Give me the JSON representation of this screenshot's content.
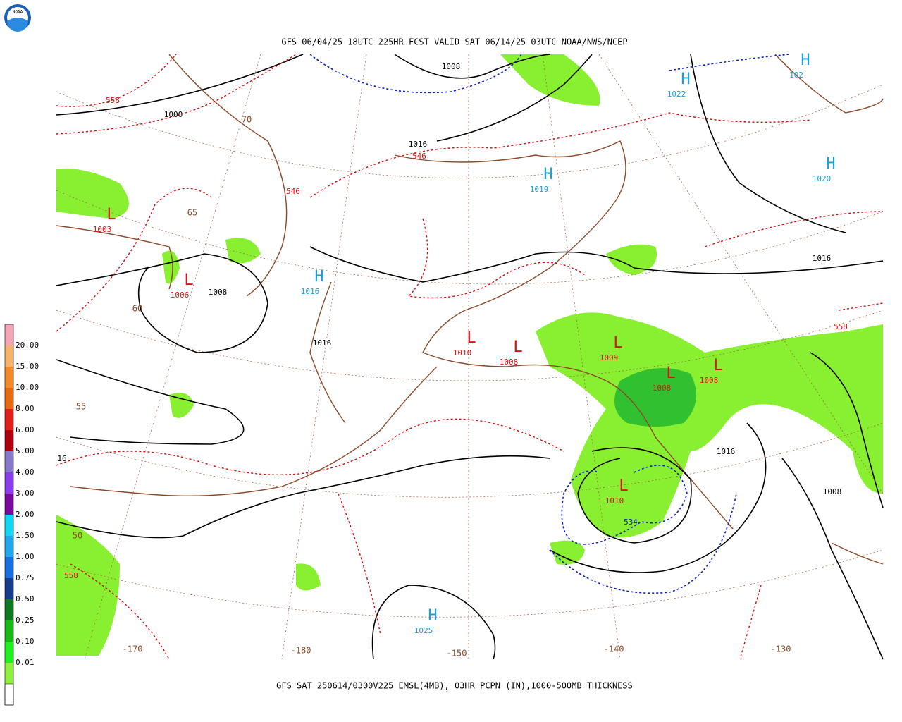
{
  "header": {
    "title": "GFS 06/04/25 18UTC 225HR FCST VALID SAT 06/14/25 03UTC NOAA/NWS/NCEP",
    "logo": "NOAA"
  },
  "footer": {
    "caption": "GFS SAT 250614/0300V225 EMSL(4MB), 03HR PCPN (IN),1000-500MB THICKNESS"
  },
  "legend": {
    "top_color": "#f4a6b6",
    "bottom_color": "#ffffff",
    "items": [
      {
        "label": "20.00",
        "color": "#f2b46e"
      },
      {
        "label": "15.00",
        "color": "#f08c28"
      },
      {
        "label": "10.00",
        "color": "#e86a10"
      },
      {
        "label": "8.00",
        "color": "#e02018"
      },
      {
        "label": "6.00",
        "color": "#b00010"
      },
      {
        "label": "5.00",
        "color": "#8878c8"
      },
      {
        "label": "4.00",
        "color": "#8a3cf0"
      },
      {
        "label": "3.00",
        "color": "#7a0a9a"
      },
      {
        "label": "2.00",
        "color": "#10d8f0"
      },
      {
        "label": "1.50",
        "color": "#20a8e8"
      },
      {
        "label": "1.00",
        "color": "#1870e0"
      },
      {
        "label": "0.75",
        "color": "#183c88"
      },
      {
        "label": "0.50",
        "color": "#107820"
      },
      {
        "label": "0.25",
        "color": "#18b818"
      },
      {
        "label": "0.10",
        "color": "#20f020"
      },
      {
        "label": "0.01",
        "color": "#90f040"
      }
    ]
  },
  "centers": [
    {
      "symbol": "L",
      "label": "1003"
    },
    {
      "symbol": "L",
      "label": "1006"
    },
    {
      "symbol": "H",
      "label": "1016"
    },
    {
      "symbol": "H",
      "label": "1019"
    },
    {
      "symbol": "H",
      "label": "1022"
    },
    {
      "symbol": "H",
      "label": "102"
    },
    {
      "symbol": "H",
      "label": "1020"
    },
    {
      "symbol": "L",
      "label": "1010"
    },
    {
      "symbol": "L",
      "label": "1008"
    },
    {
      "symbol": "L",
      "label": "1009"
    },
    {
      "symbol": "L",
      "label": "1008"
    },
    {
      "symbol": "L",
      "label": "1008"
    },
    {
      "symbol": "L",
      "label": "1010"
    },
    {
      "symbol": "H",
      "label": "1025"
    }
  ],
  "contour_labels": [
    {
      "label": "1008",
      "color": "#000000"
    },
    {
      "label": "1000",
      "color": "#000000"
    },
    {
      "label": "1016",
      "color": "#000000"
    },
    {
      "label": "1008",
      "color": "#000000"
    },
    {
      "label": "1016",
      "color": "#000000"
    },
    {
      "label": "1016",
      "color": "#000000"
    },
    {
      "label": "1016",
      "color": "#000000"
    },
    {
      "label": "1008",
      "color": "#000000"
    },
    {
      "label": "16",
      "color": "#000000"
    },
    {
      "label": "558",
      "color": "#e01010"
    },
    {
      "label": "546",
      "color": "#e01010"
    },
    {
      "label": "546",
      "color": "#e01010"
    },
    {
      "label": "558",
      "color": "#e01010"
    },
    {
      "label": "558",
      "color": "#e01010"
    },
    {
      "label": "534",
      "color": "#1020c0"
    }
  ],
  "grid_labels": [
    "70",
    "65",
    "60",
    "55",
    "50",
    "-170",
    "-180",
    "-150",
    "-140",
    "-130"
  ]
}
